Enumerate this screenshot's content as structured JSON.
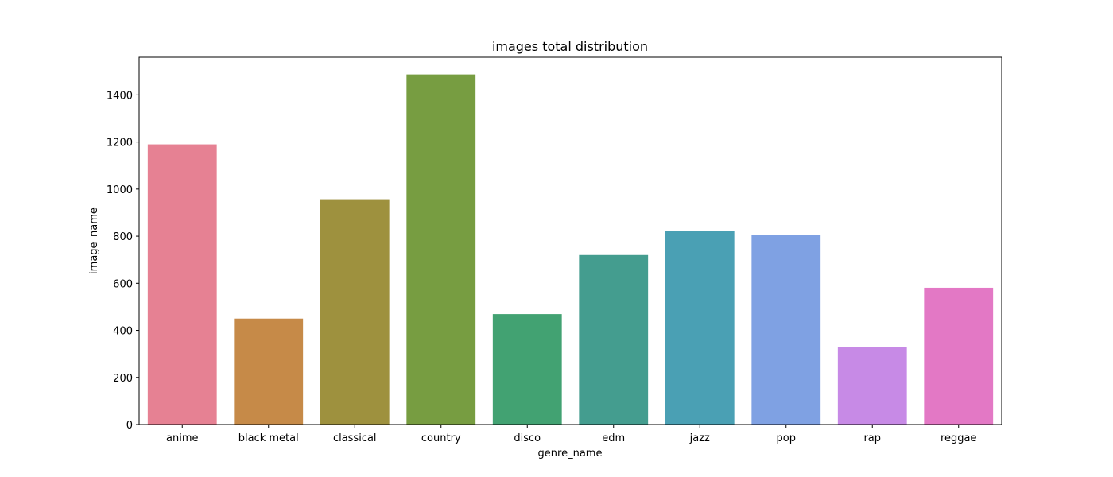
{
  "chart_data": {
    "type": "bar",
    "title": "images total distribution",
    "xlabel": "genre_name",
    "ylabel": "image_name",
    "categories": [
      "anime",
      "black metal",
      "classical",
      "country",
      "disco",
      "edm",
      "jazz",
      "pop",
      "rap",
      "reggae"
    ],
    "values": [
      1190,
      450,
      957,
      1487,
      469,
      720,
      821,
      804,
      328,
      581
    ],
    "colors": [
      "#e68193",
      "#c68a48",
      "#9e913e",
      "#779d41",
      "#42a272",
      "#449d8f",
      "#4aa0b4",
      "#7fa1e3",
      "#c78ae6",
      "#e378c5"
    ],
    "ylim": [
      0,
      1560
    ],
    "yticks": [
      0,
      200,
      400,
      600,
      800,
      1000,
      1200,
      1400
    ],
    "grid": false,
    "legend": "none"
  }
}
